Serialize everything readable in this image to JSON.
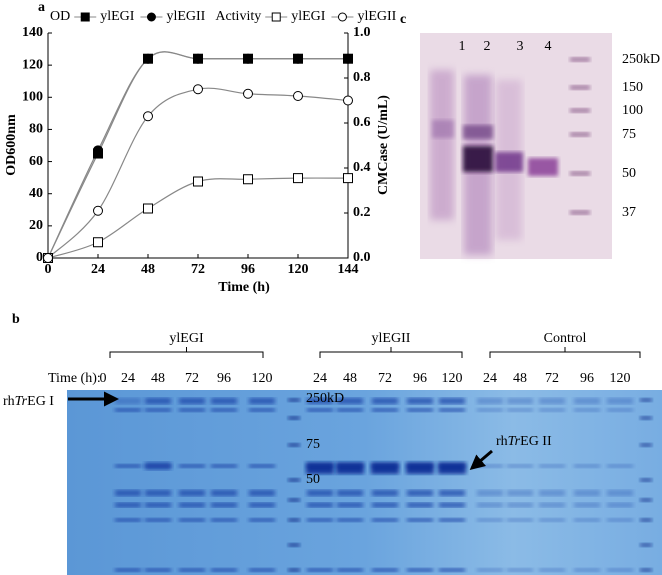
{
  "chart_data": {
    "type": "line",
    "title": "a",
    "x": [
      0,
      24,
      48,
      72,
      96,
      120,
      144
    ],
    "xlim": [
      0,
      144
    ],
    "xticks": [
      0,
      24,
      48,
      72,
      96,
      120,
      144
    ],
    "xlabel": "Time (h)",
    "ylim": [
      0,
      140
    ],
    "yticks": [
      0,
      20,
      40,
      60,
      80,
      100,
      120,
      140
    ],
    "ylabel": "OD600nm",
    "y2lim": [
      0,
      1
    ],
    "y2ticks": [
      {
        "value": 0,
        "label": "0.0"
      },
      0.2,
      0.4,
      0.6,
      0.8,
      {
        "value": 1,
        "label": "1.0"
      }
    ],
    "y2label": "CMCase (U/mL)",
    "grid": false,
    "legend_groups": [
      "OD",
      "Activity"
    ],
    "series": [
      {
        "name": "ylEGI",
        "color": "#000000",
        "marker": "square",
        "filled": true,
        "axis": "y",
        "values": [
          0,
          65,
          124,
          124,
          124,
          124,
          124
        ]
      },
      {
        "name": "ylEGII",
        "color": "#000000",
        "marker": "circle",
        "filled": true,
        "axis": "y",
        "values": [
          0,
          67,
          124,
          124,
          124,
          124,
          124
        ]
      },
      {
        "name": "ylEGI",
        "color": "#000000",
        "marker": "square",
        "filled": false,
        "axis": "y2",
        "values": [
          0,
          0.07,
          0.22,
          0.34,
          0.35,
          0.355,
          0.355
        ]
      },
      {
        "name": "ylEGII",
        "color": "#000000",
        "marker": "circle",
        "filled": false,
        "axis": "y2",
        "values": [
          0,
          0.21,
          0.63,
          0.75,
          0.73,
          0.72,
          0.7
        ]
      }
    ]
  },
  "panel_b": {
    "label": "b",
    "groups": [
      "ylEGI",
      "ylEGII",
      "Control"
    ],
    "time_label": "Time (h):",
    "times": [
      "0",
      "24",
      "48",
      "72",
      "96",
      "120",
      "24",
      "48",
      "72",
      "96",
      "120",
      "24",
      "48",
      "72",
      "96",
      "120"
    ],
    "markers": [
      "250kD",
      "75",
      "50"
    ],
    "arrows": [
      {
        "prefix": "rh",
        "italic": "Tr",
        "suffix": "EG I"
      },
      {
        "prefix": "rh",
        "italic": "Tr",
        "suffix": "EG II"
      }
    ]
  },
  "panel_c": {
    "label": "c",
    "lanes": [
      "1",
      "2",
      "3",
      "4"
    ],
    "markers": [
      "250kD",
      "150",
      "100",
      "75",
      "50",
      "37"
    ]
  }
}
